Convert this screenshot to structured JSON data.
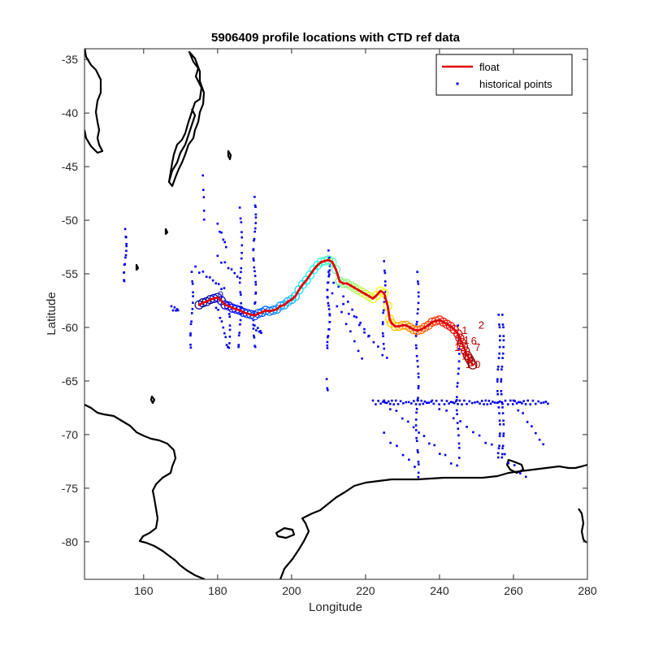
{
  "chart_data": {
    "type": "scatter",
    "title": "5906409 profile locations with CTD ref data",
    "xlabel": "Longitude",
    "ylabel": "Latitude",
    "xlim": [
      144,
      280
    ],
    "ylim": [
      -83.5,
      -34
    ],
    "xticks": [
      160,
      180,
      200,
      220,
      240,
      260,
      280
    ],
    "yticks": [
      -35,
      -40,
      -45,
      -50,
      -55,
      -60,
      -65,
      -70,
      -75,
      -80
    ],
    "grid": false,
    "legend_position": "top-right",
    "colors": {
      "float_line": "#e00000",
      "historical": "#0000ee",
      "coastline": "#000000",
      "axes": "#262626"
    },
    "legend": [
      {
        "label": "float",
        "kind": "line"
      },
      {
        "label": "historical points",
        "kind": "marker"
      }
    ],
    "series": [
      {
        "name": "float",
        "x": [
          175,
          176,
          177,
          178,
          179,
          180,
          181,
          182,
          183,
          184,
          185,
          186,
          187,
          188,
          189,
          190,
          191,
          192,
          193,
          194,
          195,
          196,
          197,
          198,
          199,
          200,
          201,
          202,
          203,
          204,
          205,
          206,
          207,
          208,
          209,
          210,
          211,
          212,
          213,
          214,
          215,
          216,
          217,
          218,
          219,
          220,
          221,
          222,
          223,
          224,
          225,
          226,
          226.5,
          227,
          228,
          229,
          230,
          231,
          232,
          233,
          234,
          235,
          236,
          237,
          238,
          239,
          240,
          241,
          242,
          243,
          244,
          245,
          245.5,
          246,
          246.5,
          247,
          247.5,
          248,
          248.5,
          249
        ],
        "y": [
          -57.9,
          -57.7,
          -57.6,
          -57.4,
          -57.3,
          -57.2,
          -57.5,
          -57.9,
          -58.0,
          -58.2,
          -58.3,
          -58.4,
          -58.6,
          -58.7,
          -58.8,
          -58.9,
          -58.7,
          -58.6,
          -58.4,
          -58.5,
          -58.4,
          -58.3,
          -58.0,
          -57.9,
          -57.6,
          -57.4,
          -57.1,
          -56.5,
          -56.0,
          -55.6,
          -55.1,
          -54.6,
          -54.2,
          -53.9,
          -53.8,
          -53.7,
          -53.9,
          -54.6,
          -55.7,
          -55.9,
          -55.9,
          -56.1,
          -56.3,
          -56.5,
          -56.7,
          -56.9,
          -57.1,
          -57.3,
          -57.0,
          -56.6,
          -56.8,
          -58.0,
          -59.2,
          -59.6,
          -59.9,
          -59.9,
          -59.8,
          -59.8,
          -60.0,
          -60.2,
          -60.3,
          -60.2,
          -60.0,
          -59.8,
          -59.5,
          -59.4,
          -59.3,
          -59.5,
          -59.7,
          -59.9,
          -60.2,
          -60.6,
          -61.0,
          -61.4,
          -61.8,
          -62.2,
          -62.6,
          -62.9,
          -63.2,
          -63.5
        ]
      },
      {
        "name": "historical points",
        "clusters": [
          {
            "x": [
              155,
              155
            ],
            "y": [
              -51,
              -55.8
            ],
            "n": 14
          },
          {
            "x": [
              167.5,
              169
            ],
            "y": [
              -58.2,
              -58.4
            ],
            "n": 6
          },
          {
            "x": [
              173,
              173
            ],
            "y": [
              -55,
              -62
            ],
            "n": 14
          },
          {
            "x": [
              174,
              182
            ],
            "y": [
              -54.5,
              -56.5
            ],
            "n": 10
          },
          {
            "x": [
              176,
              176
            ],
            "y": [
              -46,
              -50
            ],
            "n": 5
          },
          {
            "x": [
              179,
              183
            ],
            "y": [
              -57.5,
              -62
            ],
            "n": 10
          },
          {
            "x": [
              180,
              182
            ],
            "y": [
              -50.5,
              -52.5
            ],
            "n": 6
          },
          {
            "x": [
              180,
              186
            ],
            "y": [
              -53.5,
              -55.5
            ],
            "n": 8
          },
          {
            "x": [
              183,
              183
            ],
            "y": [
              -58,
              -62
            ],
            "n": 8
          },
          {
            "x": [
              186,
              186
            ],
            "y": [
              -56,
              -62
            ],
            "n": 12
          },
          {
            "x": [
              186,
              186.5
            ],
            "y": [
              -49,
              -55
            ],
            "n": 10
          },
          {
            "x": [
              190,
              190
            ],
            "y": [
              -48,
              -62
            ],
            "n": 32
          },
          {
            "x": [
              190,
              191.5
            ],
            "y": [
              -60,
              -60.5
            ],
            "n": 6
          },
          {
            "x": [
              210,
              210
            ],
            "y": [
              -53,
              -62
            ],
            "n": 28
          },
          {
            "x": [
              209.5,
              209.5
            ],
            "y": [
              -65,
              -66
            ],
            "n": 3
          },
          {
            "x": [
              210,
              221
            ],
            "y": [
              -55,
              -61
            ],
            "n": 10
          },
          {
            "x": [
              211,
              219
            ],
            "y": [
              -57,
              -63
            ],
            "n": 8
          },
          {
            "x": [
              214,
              226
            ],
            "y": [
              -58,
              -63
            ],
            "n": 10
          },
          {
            "x": [
              225,
              225
            ],
            "y": [
              -54,
              -62
            ],
            "n": 16
          },
          {
            "x": [
              234,
              234
            ],
            "y": [
              -55,
              -74
            ],
            "n": 36
          },
          {
            "x": [
              245,
              245
            ],
            "y": [
              -60,
              -72
            ],
            "n": 20
          },
          {
            "x": [
              256,
              256
            ],
            "y": [
              -59,
              -72
            ],
            "n": 24
          },
          {
            "x": [
              257,
              257
            ],
            "y": [
              -59,
              -72
            ],
            "n": 24
          },
          {
            "x": [
              222,
              269
            ],
            "y": [
              -67,
              -67
            ],
            "n": 80
          },
          {
            "x": [
              225,
              245
            ],
            "y": [
              -67,
              -73
            ],
            "n": 14
          },
          {
            "x": [
              238,
              258
            ],
            "y": [
              -67,
              -72
            ],
            "n": 12
          },
          {
            "x": [
              260,
              268
            ],
            "y": [
              -67,
              -71
            ],
            "n": 8
          },
          {
            "x": [
              225,
              233
            ],
            "y": [
              -70,
              -73
            ],
            "n": 6
          },
          {
            "x": [
              257,
              263
            ],
            "y": [
              -72,
              -74
            ],
            "n": 5
          }
        ]
      }
    ],
    "profile_labels": [
      {
        "text": "0",
        "x": 180,
        "y": -57.3,
        "color": "#1a1aa0"
      },
      {
        "text": "2",
        "x": 250.5,
        "y": -60.1,
        "color": "#9a0000"
      },
      {
        "text": "1",
        "x": 246,
        "y": -60.6,
        "color": "#c00000"
      },
      {
        "text": "1",
        "x": 246.5,
        "y": -61.5,
        "color": "#c00000"
      },
      {
        "text": "2",
        "x": 244.5,
        "y": -61.5,
        "color": "#8a0000"
      },
      {
        "text": "6",
        "x": 248.5,
        "y": -61.6,
        "color": "#b00000"
      },
      {
        "text": "1",
        "x": 244,
        "y": -62.2,
        "color": "#d00000"
      },
      {
        "text": "7",
        "x": 249.5,
        "y": -62.2,
        "color": "#c00000"
      },
      {
        "text": "1",
        "x": 246,
        "y": -63.0,
        "color": "#d00000"
      },
      {
        "text": "3",
        "x": 247.5,
        "y": -63.2,
        "color": "#b00000"
      },
      {
        "text": "1",
        "x": 247,
        "y": -63.8,
        "color": "#d00000"
      },
      {
        "text": "0",
        "x": 249.5,
        "y": -63.8,
        "color": "#d00000"
      }
    ]
  }
}
